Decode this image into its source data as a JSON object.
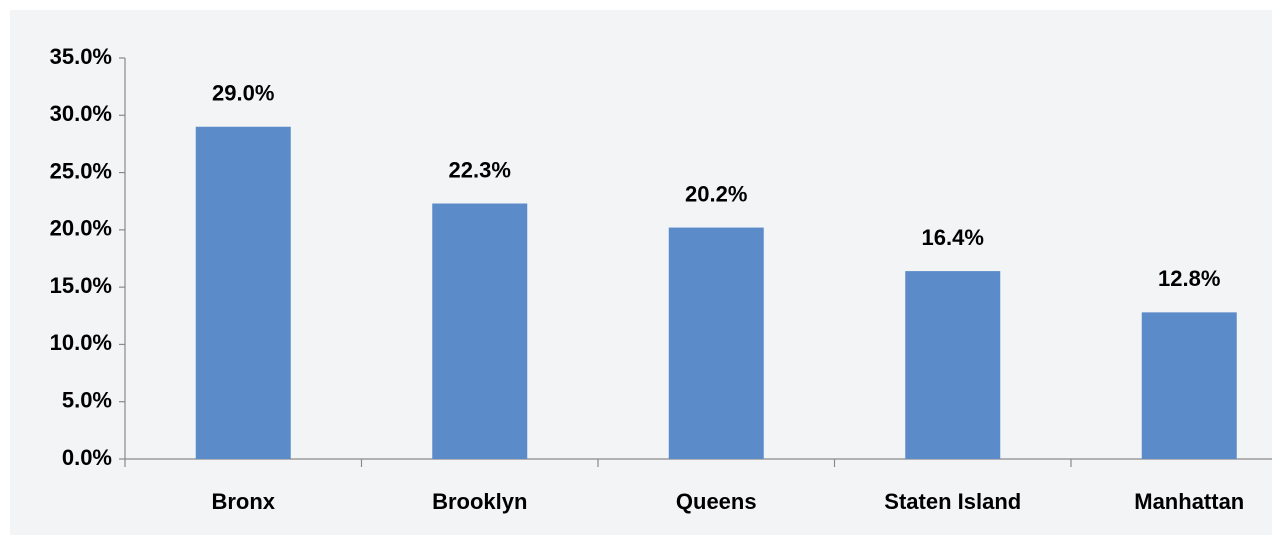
{
  "chart_data": {
    "type": "bar",
    "categories": [
      "Bronx",
      "Brooklyn",
      "Queens",
      "Staten Island",
      "Manhattan"
    ],
    "values": [
      29.0,
      22.3,
      20.2,
      16.4,
      12.8
    ],
    "value_labels": [
      "29.0%",
      "22.3%",
      "20.2%",
      "16.4%",
      "12.8%"
    ],
    "color": "#5b8cc9",
    "ylim": [
      0,
      35
    ],
    "yticks": [
      {
        "value": 0,
        "label": "0.0%"
      },
      {
        "value": 5,
        "label": "5.0%"
      },
      {
        "value": 10,
        "label": "10.0%"
      },
      {
        "value": 15,
        "label": "15.0%"
      },
      {
        "value": 20,
        "label": "20.0%"
      },
      {
        "value": 25,
        "label": "25.0%"
      },
      {
        "value": 30,
        "label": "30.0%"
      },
      {
        "value": 35,
        "label": "35.0%"
      }
    ],
    "grid": false
  }
}
